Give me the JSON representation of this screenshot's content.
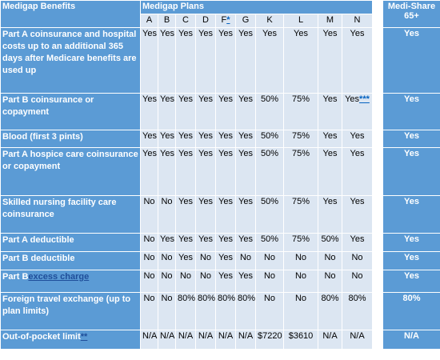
{
  "header": {
    "benefits": "Medigap Benefits",
    "plans_title": "Medigap Plans",
    "medishare": "Medi-Share 65+"
  },
  "plans": [
    {
      "label": "A"
    },
    {
      "label": "B"
    },
    {
      "label": "C"
    },
    {
      "label": "D"
    },
    {
      "label": "F",
      "link": "*"
    },
    {
      "label": "G"
    },
    {
      "label": "K"
    },
    {
      "label": "L"
    },
    {
      "label": "M"
    },
    {
      "label": "N"
    }
  ],
  "rows": [
    {
      "benefit": "Part A coinsurance and hospital costs up to an additional 365 days after Medicare benefits are used up",
      "values": [
        "Yes",
        "Yes",
        "Yes",
        "Yes",
        "Yes",
        "Yes",
        "Yes",
        "Yes",
        "Yes",
        "Yes"
      ],
      "medishare": "Yes"
    },
    {
      "benefit": "Part B coinsurance or copayment",
      "values": [
        "Yes",
        "Yes",
        "Yes",
        "Yes",
        "Yes",
        "Yes",
        "50%",
        "75%",
        "Yes",
        {
          "text": "Yes",
          "link": "***"
        }
      ],
      "medishare": "Yes"
    },
    {
      "benefit": "Blood (first 3 pints)",
      "values": [
        "Yes",
        "Yes",
        "Yes",
        "Yes",
        "Yes",
        "Yes",
        "50%",
        "75%",
        "Yes",
        "Yes"
      ],
      "medishare": "Yes"
    },
    {
      "benefit": "Part A hospice care coinsurance or copayment",
      "values": [
        "Yes",
        "Yes",
        "Yes",
        "Yes",
        "Yes",
        "Yes",
        "50%",
        "75%",
        "Yes",
        "Yes"
      ],
      "medishare": "Yes"
    },
    {
      "benefit": "Skilled nursing facility care coinsurance",
      "values": [
        "No",
        "No",
        "Yes",
        "Yes",
        "Yes",
        "Yes",
        "50%",
        "75%",
        "Yes",
        "Yes"
      ],
      "medishare": "Yes"
    },
    {
      "benefit": "Part A deductible",
      "values": [
        "No",
        "Yes",
        "Yes",
        "Yes",
        "Yes",
        "Yes",
        "50%",
        "75%",
        "50%",
        "Yes"
      ],
      "medishare": "Yes"
    },
    {
      "benefit": "Part B deductible",
      "values": [
        "No",
        "No",
        "Yes",
        "No",
        "Yes",
        "No",
        "No",
        "No",
        "No",
        "No"
      ],
      "medishare": "Yes"
    },
    {
      "benefit": "Part B",
      "benefit_link": "excess charge",
      "values": [
        "No",
        "No",
        "No",
        "No",
        "Yes",
        "Yes",
        "No",
        "No",
        "No",
        "No"
      ],
      "medishare": "Yes"
    },
    {
      "benefit": "Foreign travel exchange (up to plan limits)",
      "values": [
        "No",
        "No",
        "80%",
        "80%",
        "80%",
        "80%",
        "No",
        "No",
        "80%",
        "80%"
      ],
      "medishare": "80%"
    },
    {
      "benefit": "Out-of-pocket limit",
      "benefit_link": "**",
      "values": [
        "N/A",
        "N/A",
        "N/A",
        "N/A",
        "N/A",
        "N/A",
        "$7220",
        "$3610",
        "N/A",
        "N/A"
      ],
      "medishare": "N/A"
    }
  ]
}
